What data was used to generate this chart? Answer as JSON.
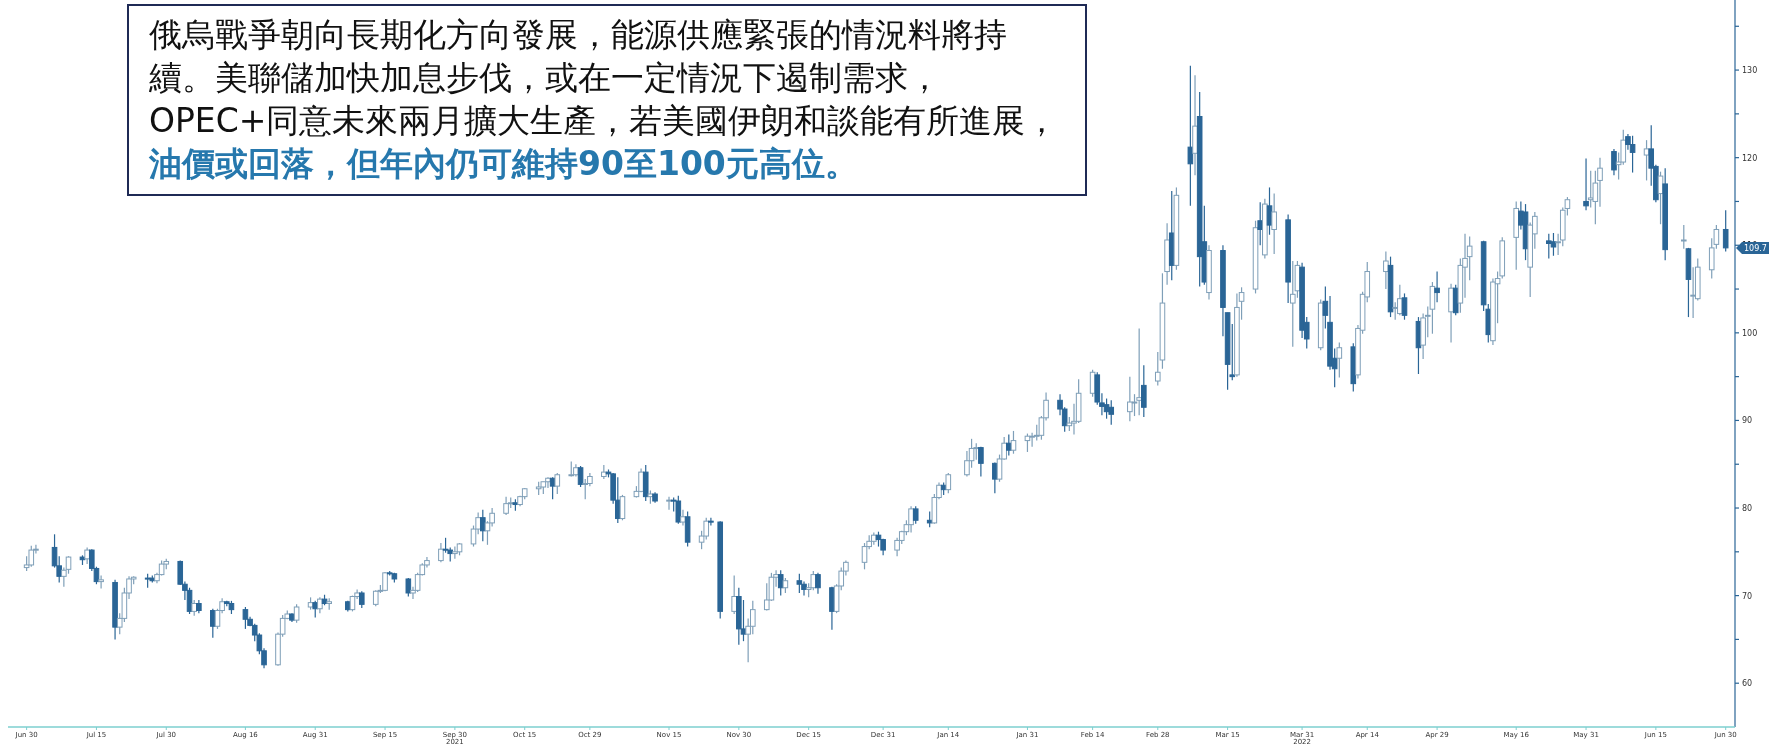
{
  "chart_data": {
    "type": "candlestick",
    "annotations": [
      "俄烏戰爭朝向長期化方向發展，能源供應緊張的情況料將持續。美聯儲加快加息步伐，或在一定情況下遏制需求，OPEC+同意未來兩月擴大生產，若美國伊朗和談能有所進展，",
      "油價或回落，但年內仍可維持90至100元高位。",
      {
        "text": "109.7",
        "x": "2022-06-30",
        "y": 109.7
      }
    ],
    "xlim": [
      "2021-06-26",
      "2022-07-02"
    ],
    "xticks": [
      {
        "value": "2021-06-30",
        "label": "Jun 30"
      },
      {
        "value": "2021-07-15",
        "label": "Jul 15"
      },
      {
        "value": "2021-07-30",
        "label": "Jul 30"
      },
      {
        "value": "2021-08-16",
        "label": "Aug 16"
      },
      {
        "value": "2021-08-31",
        "label": "Aug 31"
      },
      {
        "value": "2021-09-15",
        "label": "Sep 15"
      },
      {
        "value": "2021-09-30",
        "label": "Sep 30\n2021"
      },
      {
        "value": "2021-10-15",
        "label": "Oct 15"
      },
      {
        "value": "2021-10-29",
        "label": "Oct 29"
      },
      {
        "value": "2021-11-15",
        "label": "Nov 15"
      },
      {
        "value": "2021-11-30",
        "label": "Nov 30"
      },
      {
        "value": "2021-12-15",
        "label": "Dec 15"
      },
      {
        "value": "2021-12-31",
        "label": "Dec 31"
      },
      {
        "value": "2022-01-14",
        "label": "Jan 14"
      },
      {
        "value": "2022-01-31",
        "label": "Jan 31"
      },
      {
        "value": "2022-02-14",
        "label": "Feb 14"
      },
      {
        "value": "2022-02-28",
        "label": "Feb 28"
      },
      {
        "value": "2022-03-15",
        "label": "Mar 15"
      },
      {
        "value": "2022-03-31",
        "label": "Mar 31\n2022"
      },
      {
        "value": "2022-04-14",
        "label": "Apr 14"
      },
      {
        "value": "2022-04-29",
        "label": "Apr 29"
      },
      {
        "value": "2022-05-16",
        "label": "May 16"
      },
      {
        "value": "2022-05-31",
        "label": "May 31"
      },
      {
        "value": "2022-06-15",
        "label": "Jun 15"
      },
      {
        "value": "2022-06-30",
        "label": "Jun 30"
      }
    ],
    "ylim": [
      55,
      138
    ],
    "yticks": [
      60,
      {
        "value": 65,
        "label": null
      },
      70,
      {
        "value": 75,
        "label": null
      },
      80,
      {
        "value": 85,
        "label": null
      },
      90,
      {
        "value": 95,
        "label": null
      },
      100,
      {
        "value": 105,
        "label": null
      },
      110,
      {
        "value": 115,
        "label": null
      },
      120,
      {
        "value": 125,
        "label": null
      },
      130,
      {
        "value": 135,
        "label": null
      }
    ],
    "x": [
      "2021-06-30",
      "2021-07-01",
      "2021-07-02",
      "2021-07-06",
      "2021-07-07",
      "2021-07-08",
      "2021-07-09",
      "2021-07-12",
      "2021-07-13",
      "2021-07-14",
      "2021-07-15",
      "2021-07-16",
      "2021-07-19",
      "2021-07-20",
      "2021-07-21",
      "2021-07-22",
      "2021-07-23",
      "2021-07-26",
      "2021-07-27",
      "2021-07-28",
      "2021-07-29",
      "2021-07-30",
      "2021-08-02",
      "2021-08-03",
      "2021-08-04",
      "2021-08-05",
      "2021-08-06",
      "2021-08-09",
      "2021-08-10",
      "2021-08-11",
      "2021-08-12",
      "2021-08-13",
      "2021-08-16",
      "2021-08-17",
      "2021-08-18",
      "2021-08-19",
      "2021-08-20",
      "2021-08-23",
      "2021-08-24",
      "2021-08-25",
      "2021-08-26",
      "2021-08-27",
      "2021-08-30",
      "2021-08-31",
      "2021-09-01",
      "2021-09-02",
      "2021-09-03",
      "2021-09-07",
      "2021-09-08",
      "2021-09-09",
      "2021-09-10",
      "2021-09-13",
      "2021-09-14",
      "2021-09-15",
      "2021-09-16",
      "2021-09-17",
      "2021-09-20",
      "2021-09-21",
      "2021-09-22",
      "2021-09-23",
      "2021-09-24",
      "2021-09-27",
      "2021-09-28",
      "2021-09-29",
      "2021-09-30",
      "2021-10-01",
      "2021-10-04",
      "2021-10-05",
      "2021-10-06",
      "2021-10-07",
      "2021-10-08",
      "2021-10-11",
      "2021-10-12",
      "2021-10-13",
      "2021-10-14",
      "2021-10-15",
      "2021-10-18",
      "2021-10-19",
      "2021-10-20",
      "2021-10-21",
      "2021-10-22",
      "2021-10-25",
      "2021-10-26",
      "2021-10-27",
      "2021-10-28",
      "2021-10-29",
      "2021-11-01",
      "2021-11-02",
      "2021-11-03",
      "2021-11-04",
      "2021-11-05",
      "2021-11-08",
      "2021-11-09",
      "2021-11-10",
      "2021-11-11",
      "2021-11-12",
      "2021-11-15",
      "2021-11-16",
      "2021-11-17",
      "2021-11-18",
      "2021-11-19",
      "2021-11-22",
      "2021-11-23",
      "2021-11-24",
      "2021-11-26",
      "2021-11-29",
      "2021-11-30",
      "2021-12-01",
      "2021-12-02",
      "2021-12-03",
      "2021-12-06",
      "2021-12-07",
      "2021-12-08",
      "2021-12-09",
      "2021-12-10",
      "2021-12-13",
      "2021-12-14",
      "2021-12-15",
      "2021-12-16",
      "2021-12-17",
      "2021-12-20",
      "2021-12-21",
      "2021-12-22",
      "2021-12-23",
      "2021-12-27",
      "2021-12-28",
      "2021-12-29",
      "2021-12-30",
      "2021-12-31",
      "2022-01-03",
      "2022-01-04",
      "2022-01-05",
      "2022-01-06",
      "2022-01-07",
      "2022-01-10",
      "2022-01-11",
      "2022-01-12",
      "2022-01-13",
      "2022-01-14",
      "2022-01-18",
      "2022-01-19",
      "2022-01-20",
      "2022-01-21",
      "2022-01-24",
      "2022-01-25",
      "2022-01-26",
      "2022-01-27",
      "2022-01-28",
      "2022-01-31",
      "2022-02-01",
      "2022-02-02",
      "2022-02-03",
      "2022-02-04",
      "2022-02-07",
      "2022-02-08",
      "2022-02-09",
      "2022-02-10",
      "2022-02-11",
      "2022-02-14",
      "2022-02-15",
      "2022-02-16",
      "2022-02-17",
      "2022-02-18",
      "2022-02-22",
      "2022-02-23",
      "2022-02-24",
      "2022-02-25",
      "2022-02-28",
      "2022-03-01",
      "2022-03-02",
      "2022-03-03",
      "2022-03-04",
      "2022-03-07",
      "2022-03-08",
      "2022-03-09",
      "2022-03-10",
      "2022-03-11",
      "2022-03-14",
      "2022-03-15",
      "2022-03-16",
      "2022-03-17",
      "2022-03-18",
      "2022-03-21",
      "2022-03-22",
      "2022-03-23",
      "2022-03-24",
      "2022-03-25",
      "2022-03-28",
      "2022-03-29",
      "2022-03-30",
      "2022-03-31",
      "2022-04-01",
      "2022-04-04",
      "2022-04-05",
      "2022-04-06",
      "2022-04-07",
      "2022-04-08",
      "2022-04-11",
      "2022-04-12",
      "2022-04-13",
      "2022-04-14",
      "2022-04-18",
      "2022-04-19",
      "2022-04-20",
      "2022-04-21",
      "2022-04-22",
      "2022-04-25",
      "2022-04-26",
      "2022-04-27",
      "2022-04-28",
      "2022-04-29",
      "2022-05-02",
      "2022-05-03",
      "2022-05-04",
      "2022-05-05",
      "2022-05-06",
      "2022-05-09",
      "2022-05-10",
      "2022-05-11",
      "2022-05-12",
      "2022-05-13",
      "2022-05-16",
      "2022-05-17",
      "2022-05-18",
      "2022-05-19",
      "2022-05-20",
      "2022-05-23",
      "2022-05-24",
      "2022-05-25",
      "2022-05-26",
      "2022-05-27",
      "2022-05-31",
      "2022-06-01",
      "2022-06-02",
      "2022-06-03",
      "2022-06-06",
      "2022-06-07",
      "2022-06-08",
      "2022-06-09",
      "2022-06-10",
      "2022-06-13",
      "2022-06-14",
      "2022-06-15",
      "2022-06-16",
      "2022-06-17",
      "2022-06-21",
      "2022-06-22",
      "2022-06-23",
      "2022-06-24",
      "2022-06-27",
      "2022-06-28",
      "2022-06-30"
    ],
    "ohlc": [
      [
        73.2,
        74.5,
        72.8,
        73.5
      ],
      [
        73.5,
        75.7,
        73.3,
        75.2
      ],
      [
        75.2,
        75.8,
        74.8,
        75.3
      ],
      [
        75.5,
        77.0,
        73.2,
        73.4
      ],
      [
        73.4,
        74.5,
        71.5,
        72.2
      ],
      [
        72.2,
        73.2,
        71.0,
        72.9
      ],
      [
        73.0,
        74.5,
        72.5,
        74.4
      ],
      [
        74.4,
        74.6,
        73.5,
        74.1
      ],
      [
        74.2,
        75.5,
        73.6,
        75.2
      ],
      [
        75.2,
        75.3,
        72.8,
        73.1
      ],
      [
        73.1,
        73.3,
        71.3,
        71.6
      ],
      [
        71.6,
        72.3,
        70.8,
        71.8
      ],
      [
        71.5,
        71.8,
        65.0,
        66.4
      ],
      [
        66.4,
        68.0,
        65.6,
        67.4
      ],
      [
        67.4,
        70.9,
        67.0,
        70.3
      ],
      [
        70.3,
        72.2,
        69.6,
        71.9
      ],
      [
        71.9,
        72.2,
        71.3,
        72.1
      ],
      [
        72.0,
        72.5,
        70.9,
        71.9
      ],
      [
        72.0,
        72.3,
        71.5,
        71.7
      ],
      [
        71.7,
        72.6,
        71.4,
        72.4
      ],
      [
        72.4,
        74.0,
        72.3,
        73.6
      ],
      [
        73.6,
        74.2,
        73.0,
        73.9
      ],
      [
        73.9,
        74.0,
        71.2,
        71.3
      ],
      [
        71.3,
        71.6,
        69.5,
        70.6
      ],
      [
        70.6,
        70.9,
        67.9,
        68.2
      ],
      [
        68.2,
        69.5,
        67.7,
        69.1
      ],
      [
        69.1,
        69.5,
        68.0,
        68.3
      ],
      [
        68.3,
        68.5,
        65.2,
        66.5
      ],
      [
        66.5,
        68.5,
        66.2,
        68.3
      ],
      [
        68.3,
        69.7,
        68.0,
        69.3
      ],
      [
        69.3,
        69.4,
        68.8,
        69.1
      ],
      [
        69.1,
        69.4,
        67.9,
        68.4
      ],
      [
        68.4,
        68.7,
        66.2,
        67.3
      ],
      [
        67.3,
        67.6,
        66.5,
        66.6
      ],
      [
        66.6,
        66.8,
        64.8,
        65.5
      ],
      [
        65.5,
        65.7,
        63.3,
        63.7
      ],
      [
        63.7,
        64.0,
        61.7,
        62.1
      ],
      [
        62.1,
        65.8,
        62.0,
        65.6
      ],
      [
        65.6,
        67.8,
        65.3,
        67.4
      ],
      [
        67.4,
        68.3,
        67.3,
        67.9
      ],
      [
        67.9,
        68.0,
        67.0,
        67.2
      ],
      [
        67.2,
        69.0,
        66.9,
        68.7
      ],
      [
        68.7,
        69.8,
        68.4,
        69.2
      ],
      [
        69.2,
        69.4,
        67.5,
        68.5
      ],
      [
        68.5,
        69.8,
        68.0,
        69.6
      ],
      [
        69.6,
        70.1,
        68.9,
        69.1
      ],
      [
        69.1,
        69.7,
        68.4,
        69.3
      ],
      [
        69.3,
        69.4,
        68.2,
        68.4
      ],
      [
        68.4,
        70.0,
        68.2,
        69.9
      ],
      [
        69.9,
        70.7,
        69.6,
        70.3
      ],
      [
        70.3,
        70.5,
        68.6,
        69.0
      ],
      [
        69.0,
        70.6,
        68.8,
        70.5
      ],
      [
        70.5,
        71.2,
        70.3,
        70.6
      ],
      [
        70.6,
        72.7,
        70.5,
        72.6
      ],
      [
        72.6,
        72.8,
        72.3,
        72.5
      ],
      [
        72.5,
        72.6,
        71.5,
        71.9
      ],
      [
        71.9,
        72.0,
        69.9,
        70.3
      ],
      [
        70.3,
        71.0,
        69.6,
        70.6
      ],
      [
        70.6,
        72.6,
        70.4,
        72.4
      ],
      [
        72.4,
        73.7,
        72.3,
        73.5
      ],
      [
        73.5,
        74.4,
        73.2,
        74.0
      ],
      [
        74.0,
        76.0,
        73.8,
        75.3
      ],
      [
        75.3,
        76.6,
        74.9,
        75.2
      ],
      [
        75.2,
        75.5,
        73.9,
        74.8
      ],
      [
        74.8,
        75.6,
        74.2,
        75.0
      ],
      [
        75.0,
        76.0,
        74.6,
        75.9
      ],
      [
        75.9,
        78.0,
        75.6,
        77.6
      ],
      [
        77.6,
        79.5,
        77.0,
        78.9
      ],
      [
        78.9,
        79.8,
        76.2,
        77.4
      ],
      [
        77.4,
        78.5,
        75.8,
        78.3
      ],
      [
        78.3,
        80.0,
        77.9,
        79.4
      ],
      [
        79.4,
        81.3,
        79.2,
        80.5
      ],
      [
        80.5,
        81.2,
        80.0,
        80.6
      ],
      [
        80.6,
        81.0,
        79.7,
        80.4
      ],
      [
        80.4,
        81.4,
        80.2,
        81.3
      ],
      [
        81.3,
        82.3,
        81.0,
        82.2
      ],
      [
        82.2,
        83.0,
        81.5,
        82.4
      ],
      [
        82.4,
        83.0,
        81.6,
        83.0
      ],
      [
        83.0,
        83.5,
        82.3,
        83.4
      ],
      [
        83.4,
        83.5,
        81.0,
        82.5
      ],
      [
        82.5,
        84.0,
        81.6,
        83.8
      ],
      [
        83.8,
        85.3,
        83.6,
        83.8
      ],
      [
        83.8,
        85.0,
        83.6,
        84.6
      ],
      [
        84.6,
        84.8,
        82.4,
        82.7
      ],
      [
        82.7,
        83.3,
        81.0,
        82.8
      ],
      [
        82.8,
        84.0,
        82.5,
        83.6
      ],
      [
        83.6,
        84.9,
        83.3,
        84.1
      ],
      [
        84.1,
        84.4,
        83.5,
        83.9
      ],
      [
        83.9,
        84.0,
        80.5,
        80.9
      ],
      [
        80.9,
        83.5,
        78.3,
        78.8
      ],
      [
        78.8,
        81.5,
        78.6,
        81.3
      ],
      [
        81.3,
        82.5,
        81.2,
        81.9
      ],
      [
        81.9,
        84.5,
        81.8,
        84.1
      ],
      [
        84.1,
        84.9,
        80.8,
        81.3
      ],
      [
        81.3,
        82.0,
        80.5,
        81.6
      ],
      [
        81.6,
        81.8,
        80.6,
        80.8
      ],
      [
        80.8,
        81.3,
        79.8,
        80.9
      ],
      [
        80.9,
        81.2,
        79.6,
        80.8
      ],
      [
        80.8,
        81.4,
        78.2,
        78.4
      ],
      [
        78.4,
        79.8,
        78.0,
        79.0
      ],
      [
        79.0,
        79.6,
        75.6,
        76.1
      ],
      [
        76.1,
        77.4,
        75.3,
        76.8
      ],
      [
        76.8,
        78.9,
        76.4,
        78.5
      ],
      [
        78.5,
        78.9,
        78.0,
        78.4
      ],
      [
        78.4,
        78.5,
        67.4,
        68.2
      ],
      [
        68.2,
        72.3,
        67.9,
        69.9
      ],
      [
        69.9,
        70.9,
        64.4,
        66.2
      ],
      [
        66.2,
        69.5,
        64.8,
        65.6
      ],
      [
        65.6,
        67.4,
        62.4,
        66.5
      ],
      [
        66.5,
        69.4,
        65.6,
        68.4
      ],
      [
        68.4,
        71.4,
        68.3,
        69.5
      ],
      [
        69.5,
        72.6,
        69.4,
        72.1
      ],
      [
        72.1,
        72.9,
        71.0,
        72.4
      ],
      [
        72.4,
        72.9,
        70.0,
        70.9
      ],
      [
        70.9,
        72.0,
        70.3,
        71.7
      ],
      [
        71.7,
        72.5,
        70.3,
        71.3
      ],
      [
        71.3,
        71.6,
        70.0,
        70.7
      ],
      [
        70.7,
        71.4,
        69.8,
        70.9
      ],
      [
        70.9,
        72.8,
        70.6,
        72.4
      ],
      [
        72.4,
        72.6,
        70.2,
        70.9
      ],
      [
        70.9,
        71.0,
        66.1,
        68.2
      ],
      [
        68.2,
        71.3,
        68.0,
        71.1
      ],
      [
        71.1,
        73.2,
        70.6,
        72.8
      ],
      [
        72.8,
        74.0,
        72.3,
        73.8
      ],
      [
        73.8,
        76.0,
        73.0,
        75.6
      ],
      [
        75.6,
        76.9,
        75.3,
        76.2
      ],
      [
        76.2,
        77.2,
        75.8,
        76.9
      ],
      [
        76.9,
        77.3,
        75.6,
        76.4
      ],
      [
        76.4,
        76.5,
        74.6,
        75.2
      ],
      [
        75.2,
        76.6,
        74.5,
        76.3
      ],
      [
        76.3,
        77.4,
        75.9,
        77.3
      ],
      [
        77.3,
        78.6,
        76.9,
        78.1
      ],
      [
        78.1,
        80.2,
        77.2,
        79.9
      ],
      [
        79.9,
        80.2,
        78.2,
        78.6
      ],
      [
        78.6,
        79.6,
        77.8,
        78.3
      ],
      [
        78.3,
        81.6,
        78.2,
        81.2
      ],
      [
        81.2,
        82.9,
        81.0,
        82.6
      ],
      [
        82.6,
        82.9,
        81.5,
        82.1
      ],
      [
        82.1,
        84.0,
        81.7,
        83.8
      ],
      [
        83.8,
        86.5,
        83.6,
        85.4
      ],
      [
        85.4,
        87.9,
        84.6,
        86.8
      ],
      [
        86.8,
        87.4,
        85.5,
        86.9
      ],
      [
        86.9,
        87.0,
        83.6,
        85.1
      ],
      [
        85.1,
        85.2,
        81.7,
        83.3
      ],
      [
        83.3,
        86.1,
        83.0,
        85.6
      ],
      [
        85.6,
        88.1,
        85.5,
        87.4
      ],
      [
        87.4,
        88.4,
        86.0,
        86.6
      ],
      [
        86.6,
        88.8,
        86.2,
        87.7
      ],
      [
        87.7,
        88.5,
        86.4,
        88.2
      ],
      [
        88.2,
        88.6,
        87.0,
        88.2
      ],
      [
        88.2,
        89.5,
        87.7,
        88.3
      ],
      [
        88.3,
        90.5,
        87.8,
        90.3
      ],
      [
        90.3,
        93.2,
        90.0,
        92.3
      ],
      [
        92.3,
        93.0,
        90.6,
        91.3
      ],
      [
        91.3,
        91.5,
        88.7,
        89.4
      ],
      [
        89.4,
        90.4,
        88.8,
        89.7
      ],
      [
        89.7,
        91.9,
        88.4,
        89.9
      ],
      [
        89.9,
        94.7,
        89.7,
        93.1
      ],
      [
        93.1,
        95.8,
        92.7,
        95.5
      ],
      [
        95.2,
        95.5,
        91.8,
        92.1
      ],
      [
        92.0,
        93.1,
        90.6,
        91.6
      ],
      [
        91.8,
        92.5,
        90.2,
        91.0
      ],
      [
        91.5,
        92.3,
        89.5,
        90.7
      ],
      [
        91.0,
        95.0,
        89.9,
        92.1
      ],
      [
        92.0,
        93.0,
        90.5,
        92.1
      ],
      [
        92.3,
        100.5,
        90.6,
        92.6
      ],
      [
        94.0,
        96.3,
        90.4,
        91.5
      ],
      [
        94.5,
        97.8,
        94.0,
        95.5
      ],
      [
        96.9,
        106.8,
        95.9,
        103.4
      ],
      [
        107.0,
        112.5,
        105.5,
        110.6
      ],
      [
        111.4,
        116.2,
        106.0,
        107.7
      ],
      [
        107.7,
        116.6,
        107.2,
        115.7
      ],
      [
        121.2,
        130.5,
        114.5,
        119.3
      ],
      [
        120.5,
        129.4,
        118.0,
        123.6
      ],
      [
        124.7,
        127.5,
        105.3,
        108.7
      ],
      [
        110.4,
        114.5,
        105.5,
        105.8
      ],
      [
        104.6,
        110.0,
        103.8,
        109.4
      ],
      [
        109.4,
        110.0,
        99.6,
        102.9
      ],
      [
        102.3,
        102.3,
        93.5,
        96.4
      ],
      [
        95.2,
        101.0,
        94.6,
        95.0
      ],
      [
        95.2,
        104.5,
        95.0,
        102.9
      ],
      [
        103.6,
        105.2,
        101.5,
        104.6
      ],
      [
        105.0,
        112.8,
        104.5,
        112.0
      ],
      [
        112.8,
        114.9,
        110.0,
        111.8
      ],
      [
        108.9,
        115.3,
        108.5,
        114.7
      ],
      [
        114.5,
        116.6,
        111.2,
        112.3
      ],
      [
        111.8,
        115.9,
        109.0,
        113.8
      ],
      [
        112.9,
        113.5,
        103.4,
        105.8
      ],
      [
        103.4,
        108.2,
        98.4,
        104.4
      ],
      [
        104.8,
        108.2,
        104.0,
        107.7
      ],
      [
        107.5,
        108.0,
        99.4,
        100.3
      ],
      [
        101.2,
        101.8,
        98.2,
        99.3
      ],
      [
        98.3,
        103.8,
        98.0,
        103.4
      ],
      [
        103.6,
        105.3,
        100.5,
        102.0
      ],
      [
        101.2,
        104.2,
        95.8,
        96.2
      ],
      [
        97.1,
        98.2,
        93.8,
        95.9
      ],
      [
        97.1,
        98.9,
        94.9,
        98.3
      ],
      [
        98.4,
        98.8,
        93.3,
        94.2
      ],
      [
        95.2,
        100.9,
        94.8,
        100.5
      ],
      [
        100.3,
        104.7,
        99.9,
        104.4
      ],
      [
        104.1,
        108.1,
        103.5,
        107.0
      ],
      [
        107.0,
        109.3,
        105.0,
        108.2
      ],
      [
        107.7,
        108.7,
        101.8,
        102.4
      ],
      [
        102.9,
        103.5,
        101.5,
        102.9
      ],
      [
        102.2,
        105.5,
        102.0,
        103.9
      ],
      [
        104.0,
        104.5,
        101.5,
        102.0
      ],
      [
        101.3,
        101.8,
        95.3,
        98.3
      ],
      [
        98.6,
        102.2,
        97.0,
        101.7
      ],
      [
        102.0,
        103.0,
        99.5,
        102.0
      ],
      [
        102.7,
        105.8,
        99.9,
        105.3
      ],
      [
        105.1,
        107.0,
        103.5,
        104.6
      ],
      [
        102.4,
        105.6,
        98.9,
        105.1
      ],
      [
        105.1,
        105.5,
        102.0,
        102.3
      ],
      [
        103.4,
        108.5,
        102.3,
        107.7
      ],
      [
        107.5,
        111.3,
        104.0,
        108.5
      ],
      [
        108.7,
        111.0,
        106.0,
        109.9
      ],
      [
        110.4,
        110.5,
        102.5,
        103.2
      ],
      [
        102.7,
        103.3,
        98.9,
        99.8
      ],
      [
        99.1,
        106.2,
        98.6,
        105.8
      ],
      [
        105.6,
        107.0,
        101.1,
        106.2
      ],
      [
        106.5,
        110.9,
        106.2,
        110.5
      ],
      [
        110.9,
        115.0,
        107.2,
        114.2
      ],
      [
        113.9,
        115.0,
        111.8,
        112.3
      ],
      [
        113.8,
        114.7,
        108.3,
        109.6
      ],
      [
        107.5,
        112.6,
        104.1,
        112.3
      ],
      [
        111.3,
        113.8,
        109.6,
        113.3
      ],
      [
        110.5,
        111.3,
        108.5,
        110.2
      ],
      [
        110.4,
        111.4,
        108.8,
        109.8
      ],
      [
        110.3,
        111.3,
        108.9,
        110.4
      ],
      [
        110.6,
        114.3,
        109.9,
        114.0
      ],
      [
        114.2,
        115.5,
        113.4,
        115.2
      ],
      [
        115.0,
        119.9,
        114.0,
        114.5
      ],
      [
        115.2,
        118.5,
        114.3,
        115.4
      ],
      [
        115.0,
        118.5,
        112.4,
        117.1
      ],
      [
        117.4,
        120.0,
        114.4,
        118.8
      ],
      [
        120.7,
        121.0,
        118.0,
        118.6
      ],
      [
        119.2,
        120.6,
        117.5,
        119.5
      ],
      [
        119.5,
        123.2,
        119.2,
        122.0
      ],
      [
        122.4,
        122.7,
        120.9,
        121.5
      ],
      [
        121.5,
        122.5,
        118.3,
        120.6
      ],
      [
        120.3,
        122.0,
        117.4,
        121.0
      ],
      [
        121.0,
        123.7,
        116.8,
        118.8
      ],
      [
        119.0,
        119.2,
        114.9,
        115.2
      ],
      [
        115.9,
        118.4,
        112.4,
        117.9
      ],
      [
        117.0,
        118.8,
        108.3,
        109.5
      ],
      [
        110.6,
        112.3,
        109.6,
        110.6
      ],
      [
        109.6,
        109.7,
        101.8,
        106.1
      ],
      [
        104.3,
        107.5,
        101.7,
        104.3
      ],
      [
        103.9,
        108.5,
        103.7,
        107.5
      ],
      [
        107.2,
        110.8,
        106.2,
        109.7
      ],
      [
        110.1,
        112.3,
        109.6,
        111.8
      ],
      [
        111.8,
        114.0,
        109.3,
        109.7
      ]
    ]
  }
}
